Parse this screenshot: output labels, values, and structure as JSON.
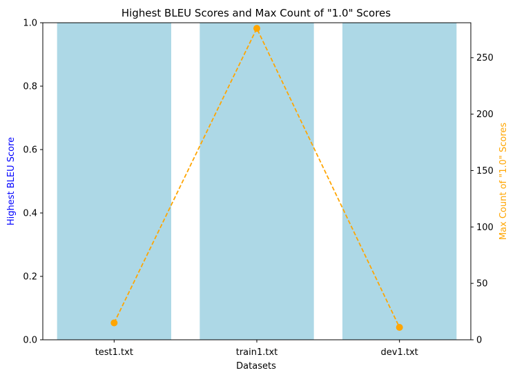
{
  "chart_data": {
    "type": "bar",
    "title": "Highest BLEU Scores and Max Count of \"1.0\" Scores",
    "xlabel": "Datasets",
    "categories": [
      "test1.txt",
      "train1.txt",
      "dev1.txt"
    ],
    "left_axis": {
      "label": "Highest BLEU Score",
      "label_color": "#0000ff",
      "ylim": [
        0,
        1.0
      ],
      "ticks": [
        "0.0",
        "0.2",
        "0.4",
        "0.6",
        "0.8",
        "1.0"
      ]
    },
    "right_axis": {
      "label": "Max Count of \"1.0\" Scores",
      "label_color": "#ffa500",
      "ylim": [
        0,
        281
      ],
      "ticks": [
        "0",
        "50",
        "100",
        "150",
        "200",
        "250"
      ]
    },
    "series": [
      {
        "type": "bar",
        "axis": "left",
        "color": "#add8e6",
        "values": [
          1.0,
          1.0,
          1.0
        ]
      },
      {
        "type": "line",
        "axis": "right",
        "color": "#ffa500",
        "line_style": "dashed",
        "marker": "circle",
        "values": [
          15,
          276,
          11
        ]
      }
    ],
    "grid": false
  }
}
